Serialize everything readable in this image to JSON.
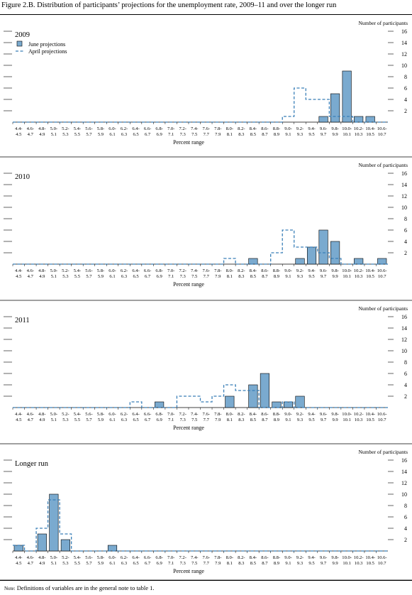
{
  "figure": {
    "title": "Figure 2.B. Distribution of participants’ projections for the unemployment rate, 2009–11 and over the longer run",
    "note_prefix": "Note:",
    "note_text": " Definitions of variables are in the general note to table 1."
  },
  "legend": {
    "june": "June projections",
    "april": "April projections"
  },
  "colors": {
    "bar_fill": "#7aaacf",
    "bar_stroke": "#000000",
    "april_line": "#3a7fb8"
  },
  "chart_data": [
    {
      "type": "bar",
      "title": "2009",
      "xlabel": "Percent range",
      "ylabel": "Number of participants",
      "ylim": [
        0,
        16
      ],
      "yticks": [
        2,
        4,
        6,
        8,
        10,
        12,
        14,
        16
      ],
      "categories": [
        "4.4-4.5",
        "4.6-4.7",
        "4.8-4.9",
        "5.0-5.1",
        "5.2-5.3",
        "5.4-5.5",
        "5.6-5.7",
        "5.8-5.9",
        "6.0-6.1",
        "6.2-6.3",
        "6.4-6.5",
        "6.6-6.7",
        "6.8-6.9",
        "7.0-7.1",
        "7.2-7.3",
        "7.4-7.5",
        "7.6-7.7",
        "7.8-7.9",
        "8.0-8.1",
        "8.2-8.3",
        "8.4-8.5",
        "8.6-8.7",
        "8.8-8.9",
        "9.0-9.1",
        "9.2-9.3",
        "9.4-9.5",
        "9.6-9.7",
        "9.8-9.9",
        "10.0-10.1",
        "10.2-10.3",
        "10.4-10.5",
        "10.6-10.7"
      ],
      "series": [
        {
          "name": "June projections",
          "values": [
            0,
            0,
            0,
            0,
            0,
            0,
            0,
            0,
            0,
            0,
            0,
            0,
            0,
            0,
            0,
            0,
            0,
            0,
            0,
            0,
            0,
            0,
            0,
            0,
            0,
            0,
            1,
            5,
            9,
            1,
            1,
            0
          ]
        },
        {
          "name": "April projections",
          "values": [
            0,
            0,
            0,
            0,
            0,
            0,
            0,
            0,
            0,
            0,
            0,
            0,
            0,
            0,
            0,
            0,
            0,
            0,
            0,
            0,
            0,
            0,
            0,
            1,
            6,
            4,
            4,
            1,
            1,
            0,
            0,
            0
          ]
        }
      ],
      "show_legend": true
    },
    {
      "type": "bar",
      "title": "2010",
      "xlabel": "Percent range",
      "ylabel": "Number of participants",
      "ylim": [
        0,
        16
      ],
      "yticks": [
        2,
        4,
        6,
        8,
        10,
        12,
        14,
        16
      ],
      "categories": [
        "4.4-4.5",
        "4.6-4.7",
        "4.8-4.9",
        "5.0-5.1",
        "5.2-5.3",
        "5.4-5.5",
        "5.6-5.7",
        "5.8-5.9",
        "6.0-6.1",
        "6.2-6.3",
        "6.4-6.5",
        "6.6-6.7",
        "6.8-6.9",
        "7.0-7.1",
        "7.2-7.3",
        "7.4-7.5",
        "7.6-7.7",
        "7.8-7.9",
        "8.0-8.1",
        "8.2-8.3",
        "8.4-8.5",
        "8.6-8.7",
        "8.8-8.9",
        "9.0-9.1",
        "9.2-9.3",
        "9.4-9.5",
        "9.6-9.7",
        "9.8-9.9",
        "10.0-10.1",
        "10.2-10.3",
        "10.4-10.5",
        "10.6-10.7"
      ],
      "series": [
        {
          "name": "June projections",
          "values": [
            0,
            0,
            0,
            0,
            0,
            0,
            0,
            0,
            0,
            0,
            0,
            0,
            0,
            0,
            0,
            0,
            0,
            0,
            0,
            0,
            1,
            0,
            0,
            0,
            1,
            3,
            6,
            4,
            0,
            1,
            0,
            1
          ]
        },
        {
          "name": "April projections",
          "values": [
            0,
            0,
            0,
            0,
            0,
            0,
            0,
            0,
            0,
            0,
            0,
            0,
            0,
            0,
            0,
            0,
            0,
            0,
            1,
            0,
            0,
            0,
            2,
            6,
            3,
            3,
            2,
            1,
            0,
            0,
            0,
            0
          ]
        }
      ],
      "show_legend": false
    },
    {
      "type": "bar",
      "title": "2011",
      "xlabel": "Percent range",
      "ylabel": "Number of participants",
      "ylim": [
        0,
        16
      ],
      "yticks": [
        2,
        4,
        6,
        8,
        10,
        12,
        14,
        16
      ],
      "categories": [
        "4.4-4.5",
        "4.6-4.7",
        "4.8-4.9",
        "5.0-5.1",
        "5.2-5.3",
        "5.4-5.5",
        "5.6-5.7",
        "5.8-5.9",
        "6.0-6.1",
        "6.2-6.3",
        "6.4-6.5",
        "6.6-6.7",
        "6.8-6.9",
        "7.0-7.1",
        "7.2-7.3",
        "7.4-7.5",
        "7.6-7.7",
        "7.8-7.9",
        "8.0-8.1",
        "8.2-8.3",
        "8.4-8.5",
        "8.6-8.7",
        "8.8-8.9",
        "9.0-9.1",
        "9.2-9.3",
        "9.4-9.5",
        "9.6-9.7",
        "9.8-9.9",
        "10.0-10.1",
        "10.2-10.3",
        "10.4-10.5",
        "10.6-10.7"
      ],
      "series": [
        {
          "name": "June projections",
          "values": [
            0,
            0,
            0,
            0,
            0,
            0,
            0,
            0,
            0,
            0,
            0,
            0,
            1,
            0,
            0,
            0,
            0,
            0,
            2,
            0,
            4,
            6,
            1,
            1,
            2,
            0,
            0,
            0,
            0,
            0,
            0,
            0
          ]
        },
        {
          "name": "April projections",
          "values": [
            0,
            0,
            0,
            0,
            0,
            0,
            0,
            0,
            0,
            0,
            1,
            0,
            0,
            0,
            2,
            2,
            1,
            2,
            4,
            3,
            3,
            0,
            0,
            1,
            0,
            0,
            0,
            0,
            0,
            0,
            0,
            0
          ]
        }
      ],
      "show_legend": false
    },
    {
      "type": "bar",
      "title": "Longer run",
      "xlabel": "Percent range",
      "ylabel": "Number of participants",
      "ylim": [
        0,
        16
      ],
      "yticks": [
        2,
        4,
        6,
        8,
        10,
        12,
        14,
        16
      ],
      "categories": [
        "4.4-4.5",
        "4.6-4.7",
        "4.8-4.9",
        "5.0-5.1",
        "5.2-5.3",
        "5.4-5.5",
        "5.6-5.7",
        "5.8-5.9",
        "6.0-6.1",
        "6.2-6.3",
        "6.4-6.5",
        "6.6-6.7",
        "6.8-6.9",
        "7.0-7.1",
        "7.2-7.3",
        "7.4-7.5",
        "7.6-7.7",
        "7.8-7.9",
        "8.0-8.1",
        "8.2-8.3",
        "8.4-8.5",
        "8.6-8.7",
        "8.8-8.9",
        "9.0-9.1",
        "9.2-9.3",
        "9.4-9.5",
        "9.6-9.7",
        "9.8-9.9",
        "10.0-10.1",
        "10.2-10.3",
        "10.4-10.5",
        "10.6-10.7"
      ],
      "series": [
        {
          "name": "June projections",
          "values": [
            1,
            0,
            3,
            10,
            2,
            0,
            0,
            0,
            1,
            0,
            0,
            0,
            0,
            0,
            0,
            0,
            0,
            0,
            0,
            0,
            0,
            0,
            0,
            0,
            0,
            0,
            0,
            0,
            0,
            0,
            0,
            0
          ]
        },
        {
          "name": "April projections",
          "values": [
            1,
            0,
            4,
            9,
            3,
            0,
            0,
            0,
            0,
            0,
            0,
            0,
            0,
            0,
            0,
            0,
            0,
            0,
            0,
            0,
            0,
            0,
            0,
            0,
            0,
            0,
            0,
            0,
            0,
            0,
            0,
            0
          ]
        }
      ],
      "show_legend": false
    }
  ]
}
